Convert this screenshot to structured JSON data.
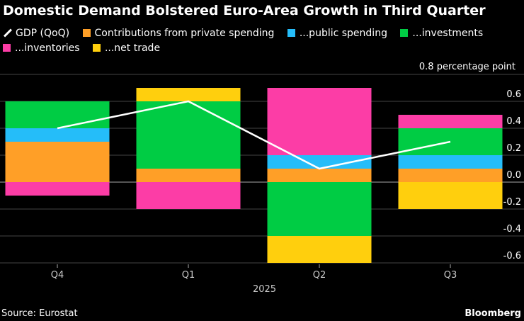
{
  "chart_data": {
    "type": "bar",
    "title": "Domestic Demand Bolstered Euro-Area Growth in Third Quarter",
    "unit_label": "0.8 percentage point",
    "categories": [
      "Q4",
      "Q1",
      "Q2",
      "Q3"
    ],
    "xlabel": "2025",
    "ylim": [
      -0.6,
      0.8
    ],
    "yticks": [
      "0.6",
      "0.4",
      "0.2",
      "0.0",
      "-0.2",
      "-0.4",
      "-0.6"
    ],
    "ytick_values": [
      0.6,
      0.4,
      0.2,
      0.0,
      -0.2,
      -0.4,
      -0.6
    ],
    "grid": true,
    "legend_position": "top",
    "stacked": true,
    "series": [
      {
        "name": "Contributions from private spending",
        "color": "#ff9f27",
        "values": [
          0.3,
          0.1,
          0.1,
          0.1
        ]
      },
      {
        "name": "...public spending",
        "color": "#25bdf9",
        "values": [
          0.1,
          0.0,
          0.1,
          0.1
        ]
      },
      {
        "name": "...investments",
        "color": "#00cc44",
        "values": [
          0.2,
          0.5,
          -0.4,
          0.2
        ]
      },
      {
        "name": "...inventories",
        "color": "#fc3da6",
        "values": [
          -0.1,
          -0.2,
          0.5,
          0.1
        ]
      },
      {
        "name": "...net trade",
        "color": "#ffcf0d",
        "values": [
          0.0,
          0.1,
          -0.2,
          -0.2
        ]
      }
    ],
    "line": {
      "name": "GDP (QoQ)",
      "color": "#ffffff",
      "values": [
        0.4,
        0.6,
        0.1,
        0.3
      ]
    }
  },
  "source": "Source: Eurostat",
  "brand": "Bloomberg"
}
